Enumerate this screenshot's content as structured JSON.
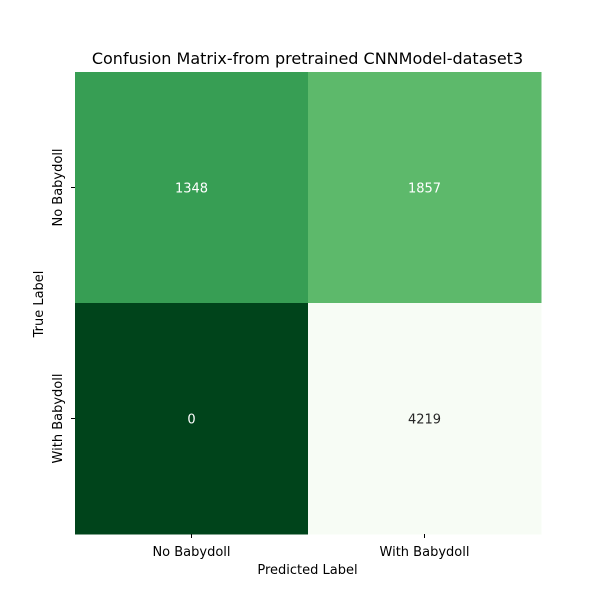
{
  "chart_data": {
    "type": "heatmap",
    "title": "Confusion Matrix-from pretrained CNNModel-dataset3",
    "xlabel": "Predicted Label",
    "ylabel": "True Label",
    "x_categories": [
      "No Babydoll",
      "With Babydoll"
    ],
    "y_categories": [
      "No Babydoll",
      "With Babydoll"
    ],
    "values": [
      [
        1348,
        1857
      ],
      [
        0,
        4219
      ]
    ],
    "colormap": "Greens_r",
    "colorbar": false,
    "annotations": true,
    "cell_colors": [
      [
        "#379e54",
        "#5db96b"
      ],
      [
        "#00441b",
        "#f7fcf5"
      ]
    ],
    "annotation_text_color": "#ffffff",
    "annotation_text_color_light_cell": "#262626"
  }
}
